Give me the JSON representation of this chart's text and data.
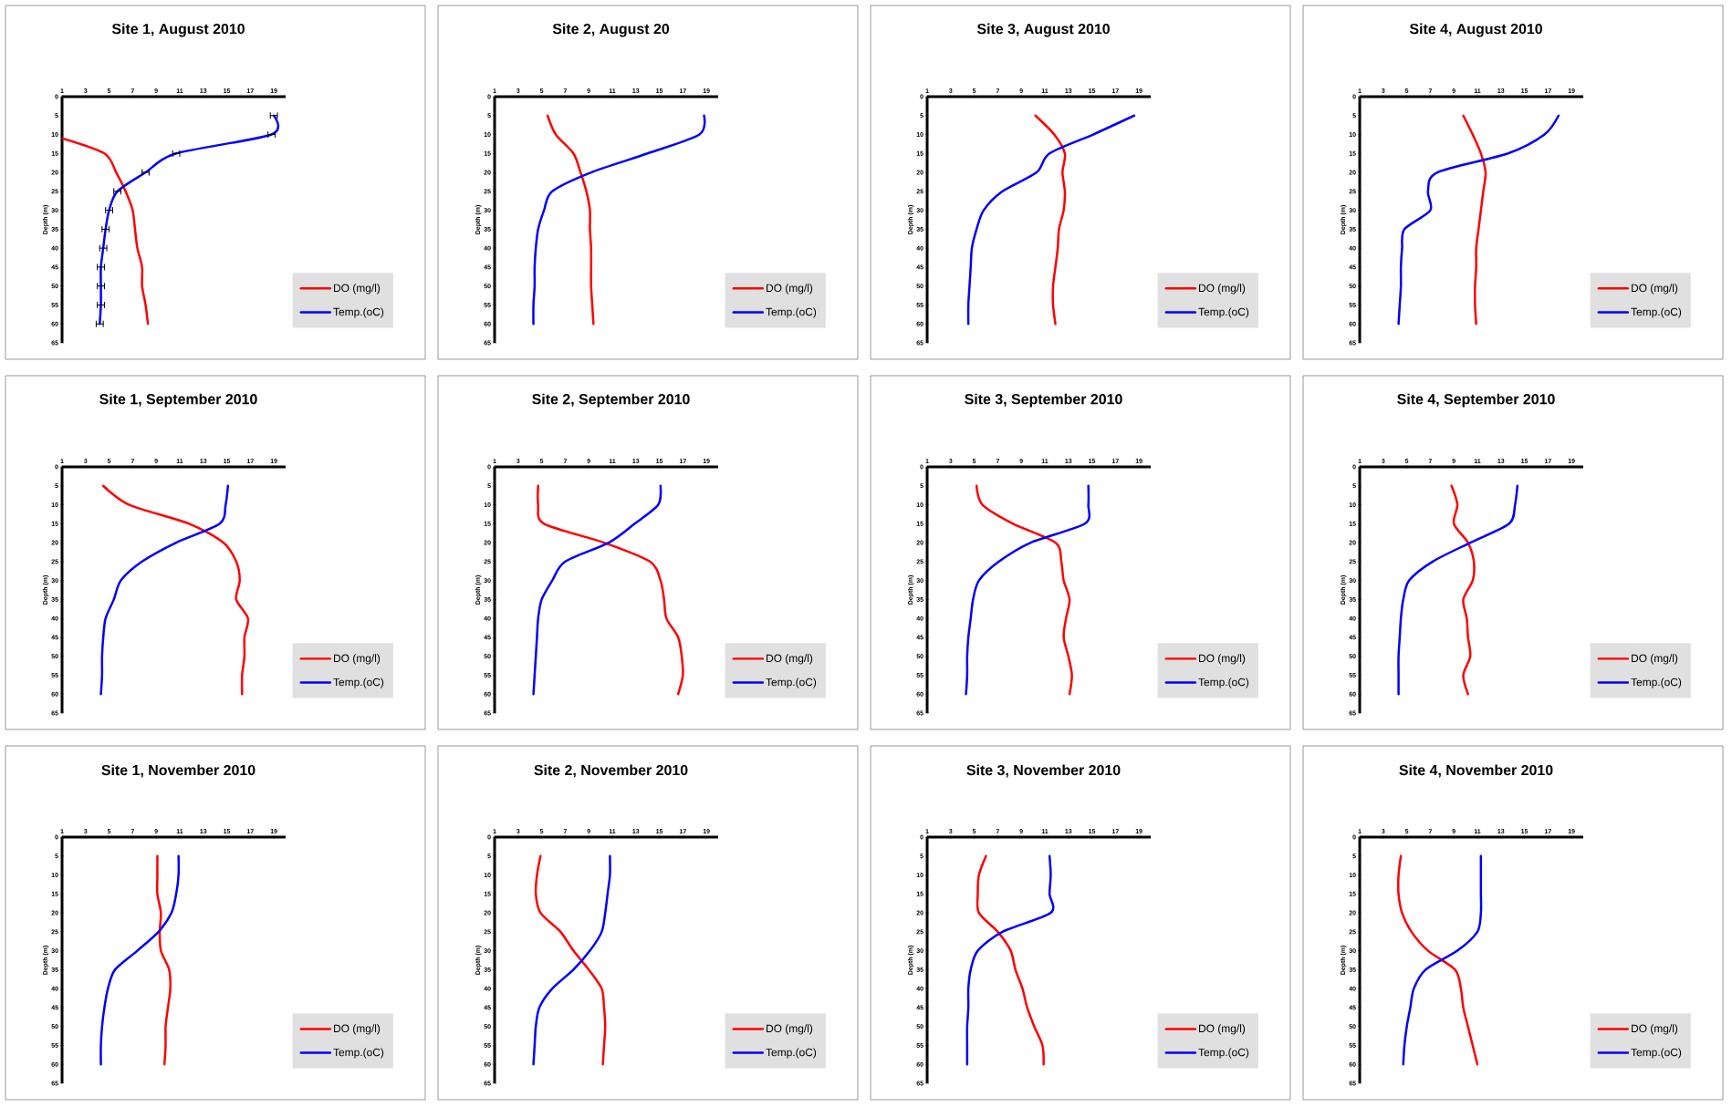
{
  "chart_data": [
    {
      "type": "line",
      "title": "Site 1, August 2010",
      "ylabel": "Depth (m)",
      "xlim": [
        1,
        20
      ],
      "xticks": [
        1,
        3,
        5,
        7,
        9,
        11,
        13,
        15,
        17,
        19
      ],
      "ylim": [
        65,
        0
      ],
      "yticks": [
        0,
        5,
        10,
        15,
        20,
        25,
        30,
        35,
        40,
        45,
        50,
        55,
        60,
        65
      ],
      "legend": "bottom right",
      "series": [
        {
          "name": "DO (mg/l)",
          "color": "#ff0000",
          "x": [
            1,
            4.6,
            5.6,
            6.4,
            7.0,
            7.2,
            7.4,
            7.8,
            7.8,
            8.1,
            8.3
          ],
          "values": [
            11,
            15,
            20,
            25,
            30,
            35,
            40,
            45,
            50,
            55,
            60
          ]
        },
        {
          "name": "Temp.(oC)",
          "color": "#0000ff",
          "x": [
            19.0,
            18.8,
            10.7,
            8.1,
            5.7,
            5.0,
            4.7,
            4.5,
            4.3,
            4.3,
            4.3,
            4.2
          ],
          "values": [
            5,
            10,
            15,
            20,
            25,
            30,
            35,
            40,
            45,
            50,
            55,
            60
          ],
          "xerrors": [
            0.3,
            0.3,
            0.3,
            0.3,
            0.3,
            0.3,
            0.3,
            0.3,
            0.3,
            0.3,
            0.3,
            0.3
          ]
        }
      ]
    },
    {
      "type": "line",
      "title": "Site 2, August 20",
      "ylabel": "Depth (m)",
      "xlim": [
        1,
        20
      ],
      "xticks": [
        1,
        3,
        5,
        7,
        9,
        11,
        13,
        15,
        17,
        19
      ],
      "ylim": [
        65,
        0
      ],
      "yticks": [
        0,
        5,
        10,
        15,
        20,
        25,
        30,
        35,
        40,
        45,
        50,
        55,
        60,
        65
      ],
      "legend": "bottom right",
      "series": [
        {
          "name": "DO (mg/l)",
          "color": "#ff0000",
          "x": [
            5.5,
            6.2,
            7.7,
            8.3,
            8.8,
            9.1,
            9.1,
            9.2,
            9.2,
            9.2,
            9.3,
            9.4
          ],
          "values": [
            5,
            10,
            15,
            20,
            25,
            30,
            35,
            40,
            45,
            50,
            55,
            60
          ]
        },
        {
          "name": "Temp.(oC)",
          "color": "#0000ff",
          "x": [
            18.8,
            18.4,
            14.0,
            9.2,
            5.9,
            5.2,
            4.7,
            4.5,
            4.4,
            4.4,
            4.3,
            4.3
          ],
          "values": [
            5,
            10,
            15,
            20,
            25,
            30,
            35,
            40,
            45,
            50,
            55,
            60
          ]
        }
      ]
    },
    {
      "type": "line",
      "title": "Site 3, August 2010",
      "ylabel": "Depth (m)",
      "xlim": [
        1,
        20
      ],
      "xticks": [
        1,
        3,
        5,
        7,
        9,
        11,
        13,
        15,
        17,
        19
      ],
      "ylim": [
        65,
        0
      ],
      "yticks": [
        0,
        5,
        10,
        15,
        20,
        25,
        30,
        35,
        40,
        45,
        50,
        55,
        60,
        65
      ],
      "legend": "bottom right",
      "series": [
        {
          "name": "DO (mg/l)",
          "color": "#ff0000",
          "x": [
            10.2,
            11.8,
            12.7,
            12.5,
            12.7,
            12.6,
            12.2,
            12.1,
            11.9,
            11.7,
            11.7,
            11.9
          ],
          "values": [
            5,
            10,
            15,
            20,
            25,
            30,
            35,
            40,
            45,
            50,
            55,
            60
          ]
        },
        {
          "name": "Temp.(oC)",
          "color": "#0000ff",
          "x": [
            18.6,
            15.1,
            11.4,
            10.3,
            7.4,
            5.8,
            5.2,
            4.8,
            4.7,
            4.6,
            4.5,
            4.5
          ],
          "values": [
            5,
            10,
            15,
            20,
            25,
            30,
            35,
            40,
            45,
            50,
            55,
            60
          ]
        }
      ]
    },
    {
      "type": "line",
      "title": "Site 4, August 2010",
      "ylabel": "Depth (m)",
      "xlim": [
        1,
        20
      ],
      "xticks": [
        1,
        3,
        5,
        7,
        9,
        11,
        13,
        15,
        17,
        19
      ],
      "ylim": [
        65,
        0
      ],
      "yticks": [
        0,
        5,
        10,
        15,
        20,
        25,
        30,
        35,
        40,
        45,
        50,
        55,
        60,
        65
      ],
      "legend": "bottom right",
      "series": [
        {
          "name": "DO (mg/l)",
          "color": "#ff0000",
          "x": [
            9.8,
            10.6,
            11.3,
            11.7,
            11.5,
            11.3,
            11.1,
            10.9,
            10.9,
            10.8,
            10.8,
            10.9
          ],
          "values": [
            5,
            10,
            15,
            20,
            25,
            30,
            35,
            40,
            45,
            50,
            55,
            60
          ]
        },
        {
          "name": "Temp.(oC)",
          "color": "#0000ff",
          "x": [
            17.9,
            16.7,
            13.6,
            7.6,
            6.8,
            7.0,
            4.8,
            4.6,
            4.5,
            4.5,
            4.4,
            4.3
          ],
          "values": [
            5,
            10,
            15,
            20,
            25,
            30,
            35,
            40,
            45,
            50,
            55,
            60
          ]
        }
      ]
    },
    {
      "type": "line",
      "title": "Site 1, September 2010",
      "ylabel": "Depth (m)",
      "xlim": [
        1,
        20
      ],
      "xticks": [
        1,
        3,
        5,
        7,
        9,
        11,
        13,
        15,
        17,
        19
      ],
      "ylim": [
        65,
        0
      ],
      "yticks": [
        0,
        5,
        10,
        15,
        20,
        25,
        30,
        35,
        40,
        45,
        50,
        55,
        60,
        65
      ],
      "legend": "bottom right",
      "series": [
        {
          "name": "DO (mg/l)",
          "color": "#ff0000",
          "x": [
            4.5,
            6.7,
            11.8,
            14.7,
            15.8,
            16.1,
            15.8,
            16.8,
            16.5,
            16.5,
            16.3,
            16.3
          ],
          "values": [
            5,
            10,
            15,
            20,
            25,
            30,
            35,
            40,
            45,
            50,
            55,
            60
          ]
        },
        {
          "name": "Temp.(oC)",
          "color": "#0000ff",
          "x": [
            15.1,
            14.9,
            14.4,
            10.7,
            7.8,
            6.0,
            5.4,
            4.7,
            4.5,
            4.4,
            4.4,
            4.3
          ],
          "values": [
            5,
            10,
            15,
            20,
            25,
            30,
            35,
            40,
            45,
            50,
            55,
            60
          ]
        }
      ]
    },
    {
      "type": "line",
      "title": "Site 2, September 2010",
      "ylabel": "Depth (m)",
      "xlim": [
        1,
        20
      ],
      "xticks": [
        1,
        3,
        5,
        7,
        9,
        11,
        13,
        15,
        17,
        19
      ],
      "ylim": [
        65,
        0
      ],
      "yticks": [
        0,
        5,
        10,
        15,
        20,
        25,
        30,
        35,
        40,
        45,
        50,
        55,
        60,
        65
      ],
      "legend": "bottom right",
      "series": [
        {
          "name": "DO (mg/l)",
          "color": "#ff0000",
          "x": [
            4.7,
            4.7,
            5.2,
            10.3,
            14.2,
            15.1,
            15.4,
            15.6,
            16.6,
            16.9,
            17.0,
            16.6
          ],
          "values": [
            5,
            10,
            15,
            20,
            25,
            30,
            35,
            40,
            45,
            50,
            55,
            60
          ]
        },
        {
          "name": "Temp.(oC)",
          "color": "#0000ff",
          "x": [
            15.1,
            14.9,
            12.9,
            10.7,
            7.0,
            5.9,
            5.0,
            4.7,
            4.6,
            4.5,
            4.4,
            4.3
          ],
          "values": [
            5,
            10,
            15,
            20,
            25,
            30,
            35,
            40,
            45,
            50,
            55,
            60
          ]
        }
      ]
    },
    {
      "type": "line",
      "title": "Site 3, September 2010",
      "ylabel": "Depth (m)",
      "xlim": [
        1,
        20
      ],
      "xticks": [
        1,
        3,
        5,
        7,
        9,
        11,
        13,
        15,
        17,
        19
      ],
      "ylim": [
        65,
        0
      ],
      "yticks": [
        0,
        5,
        10,
        15,
        20,
        25,
        30,
        35,
        40,
        45,
        50,
        55,
        60,
        65
      ],
      "legend": "bottom right",
      "series": [
        {
          "name": "DO (mg/l)",
          "color": "#ff0000",
          "x": [
            5.2,
            5.7,
            8.3,
            11.9,
            12.4,
            12.6,
            13.1,
            12.8,
            12.6,
            13.0,
            13.3,
            13.1
          ],
          "values": [
            5,
            10,
            15,
            20,
            25,
            30,
            35,
            40,
            45,
            50,
            55,
            60
          ]
        },
        {
          "name": "Temp.(oC)",
          "color": "#0000ff",
          "x": [
            14.7,
            14.7,
            14.4,
            9.8,
            7.1,
            5.4,
            4.9,
            4.7,
            4.5,
            4.4,
            4.4,
            4.3
          ],
          "values": [
            5,
            10,
            15,
            20,
            25,
            30,
            35,
            40,
            45,
            50,
            55,
            60
          ]
        }
      ]
    },
    {
      "type": "line",
      "title": "Site 4, September 2010",
      "ylabel": "Depth (m)",
      "xlim": [
        1,
        20
      ],
      "xticks": [
        1,
        3,
        5,
        7,
        9,
        11,
        13,
        15,
        17,
        19
      ],
      "ylim": [
        65,
        0
      ],
      "yticks": [
        0,
        5,
        10,
        15,
        20,
        25,
        30,
        35,
        40,
        45,
        50,
        55,
        60,
        65
      ],
      "legend": "bottom right",
      "series": [
        {
          "name": "DO (mg/l)",
          "color": "#ff0000",
          "x": [
            8.8,
            9.3,
            9.0,
            10.2,
            10.7,
            10.6,
            9.8,
            10.1,
            10.2,
            10.4,
            9.8,
            10.2
          ],
          "values": [
            5,
            10,
            15,
            20,
            25,
            30,
            35,
            40,
            45,
            50,
            55,
            60
          ]
        },
        {
          "name": "Temp.(oC)",
          "color": "#0000ff",
          "x": [
            14.4,
            14.2,
            13.7,
            10.4,
            7.2,
            5.2,
            4.7,
            4.5,
            4.4,
            4.3,
            4.3,
            4.3
          ],
          "values": [
            5,
            10,
            15,
            20,
            25,
            30,
            35,
            40,
            45,
            50,
            55,
            60
          ]
        }
      ]
    },
    {
      "type": "line",
      "title": "Site 1, November 2010",
      "ylabel": "Depth (m)",
      "xlim": [
        1,
        20
      ],
      "xticks": [
        1,
        3,
        5,
        7,
        9,
        11,
        13,
        15,
        17,
        19
      ],
      "ylim": [
        65,
        0
      ],
      "yticks": [
        0,
        5,
        10,
        15,
        20,
        25,
        30,
        35,
        40,
        45,
        50,
        55,
        60,
        65
      ],
      "legend": "bottom right",
      "series": [
        {
          "name": "DO (mg/l)",
          "color": "#ff0000",
          "x": [
            9.1,
            9.1,
            9.1,
            9.4,
            9.3,
            9.4,
            10.1,
            10.2,
            10.0,
            9.8,
            9.8,
            9.7
          ],
          "values": [
            5,
            10,
            15,
            20,
            25,
            30,
            35,
            40,
            45,
            50,
            55,
            60
          ]
        },
        {
          "name": "Temp.(oC)",
          "color": "#0000ff",
          "x": [
            10.9,
            10.9,
            10.7,
            10.3,
            9.2,
            7.4,
            5.5,
            4.9,
            4.6,
            4.4,
            4.3,
            4.3
          ],
          "values": [
            5,
            10,
            15,
            20,
            25,
            30,
            35,
            40,
            45,
            50,
            55,
            60
          ]
        }
      ]
    },
    {
      "type": "line",
      "title": "Site 2, November 2010",
      "ylabel": "Depth (m)",
      "xlim": [
        1,
        20
      ],
      "xticks": [
        1,
        3,
        5,
        7,
        9,
        11,
        13,
        15,
        17,
        19
      ],
      "ylim": [
        65,
        0
      ],
      "yticks": [
        0,
        5,
        10,
        15,
        20,
        25,
        30,
        35,
        40,
        45,
        50,
        55,
        60,
        65
      ],
      "legend": "bottom right",
      "series": [
        {
          "name": "DO (mg/l)",
          "color": "#ff0000",
          "x": [
            4.9,
            4.6,
            4.5,
            4.9,
            6.6,
            7.7,
            9.0,
            10.1,
            10.3,
            10.4,
            10.3,
            10.2
          ],
          "values": [
            5,
            10,
            15,
            20,
            25,
            30,
            35,
            40,
            45,
            50,
            55,
            60
          ]
        },
        {
          "name": "Temp.(oC)",
          "color": "#0000ff",
          "x": [
            10.8,
            10.8,
            10.6,
            10.4,
            10.1,
            9.1,
            7.7,
            5.9,
            4.8,
            4.5,
            4.4,
            4.3
          ],
          "values": [
            5,
            10,
            15,
            20,
            25,
            30,
            35,
            40,
            45,
            50,
            55,
            60
          ]
        }
      ]
    },
    {
      "type": "line",
      "title": "Site 3, November 2010",
      "ylabel": "Depth (m)",
      "xlim": [
        1,
        20
      ],
      "xticks": [
        1,
        3,
        5,
        7,
        9,
        11,
        13,
        15,
        17,
        19
      ],
      "ylim": [
        65,
        0
      ],
      "yticks": [
        0,
        5,
        10,
        15,
        20,
        25,
        30,
        35,
        40,
        45,
        50,
        55,
        60,
        65
      ],
      "legend": "bottom right",
      "series": [
        {
          "name": "DO (mg/l)",
          "color": "#ff0000",
          "x": [
            6.0,
            5.4,
            5.3,
            5.4,
            7.0,
            8.1,
            8.5,
            9.1,
            9.5,
            10.1,
            10.8,
            10.9
          ],
          "values": [
            5,
            10,
            15,
            20,
            25,
            30,
            35,
            40,
            45,
            50,
            55,
            60
          ]
        },
        {
          "name": "Temp.(oC)",
          "color": "#0000ff",
          "x": [
            11.4,
            11.5,
            11.4,
            11.5,
            7.4,
            5.3,
            4.7,
            4.5,
            4.5,
            4.4,
            4.4,
            4.4
          ],
          "values": [
            5,
            10,
            15,
            20,
            25,
            30,
            35,
            40,
            45,
            50,
            55,
            60
          ]
        }
      ]
    },
    {
      "type": "line",
      "title": "Site 4, November 2010",
      "ylabel": "Depth (m)",
      "xlim": [
        1,
        20
      ],
      "xticks": [
        1,
        3,
        5,
        7,
        9,
        11,
        13,
        15,
        17,
        19
      ],
      "ylim": [
        65,
        0
      ],
      "yticks": [
        0,
        5,
        10,
        15,
        20,
        25,
        30,
        35,
        40,
        45,
        50,
        55,
        60,
        65
      ],
      "legend": "bottom right",
      "series": [
        {
          "name": "DO (mg/l)",
          "color": "#ff0000",
          "x": [
            4.5,
            4.3,
            4.3,
            4.6,
            5.4,
            6.8,
            9.1,
            9.6,
            9.8,
            10.2,
            10.6,
            11.0
          ],
          "values": [
            5,
            10,
            15,
            20,
            25,
            30,
            35,
            40,
            45,
            50,
            55,
            60
          ]
        },
        {
          "name": "Temp.(oC)",
          "color": "#0000ff",
          "x": [
            11.3,
            11.3,
            11.3,
            11.3,
            11.0,
            9.3,
            6.6,
            5.6,
            5.3,
            5.0,
            4.8,
            4.7
          ],
          "values": [
            5,
            10,
            15,
            20,
            25,
            30,
            35,
            40,
            45,
            50,
            55,
            60
          ]
        }
      ]
    }
  ]
}
